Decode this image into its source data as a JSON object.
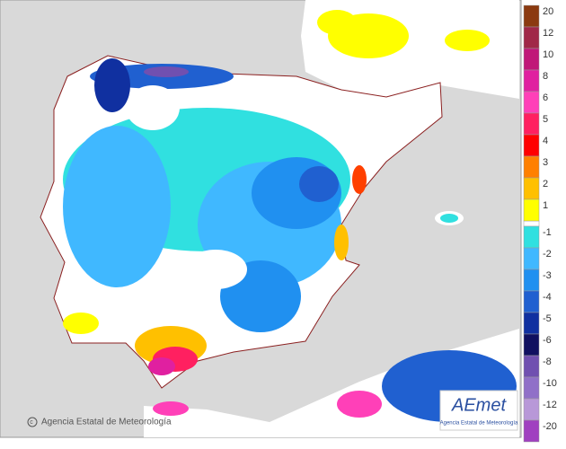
{
  "legend": [
    {
      "label": 20,
      "color": "#8b3a10"
    },
    {
      "label": 12,
      "color": "#a02848"
    },
    {
      "label": 10,
      "color": "#c01878"
    },
    {
      "label": 8,
      "color": "#e020a0"
    },
    {
      "label": 6,
      "color": "#ff40b8"
    },
    {
      "label": 5,
      "color": "#ff2060"
    },
    {
      "label": 4,
      "color": "#ff0000"
    },
    {
      "label": 3,
      "color": "#ff8000"
    },
    {
      "label": 2,
      "color": "#ffc000"
    },
    {
      "label": 1,
      "color": "#ffff00"
    },
    {
      "label": -1,
      "color": "#30e0e0"
    },
    {
      "label": -2,
      "color": "#40b8ff"
    },
    {
      "label": -3,
      "color": "#2090f0"
    },
    {
      "label": -4,
      "color": "#2060d0"
    },
    {
      "label": -5,
      "color": "#1030a0"
    },
    {
      "label": -6,
      "color": "#101060"
    },
    {
      "label": -8,
      "color": "#7050b0"
    },
    {
      "label": -10,
      "color": "#9070c8"
    },
    {
      "label": -12,
      "color": "#b898d8"
    },
    {
      "label": -20,
      "color": "#a040c0"
    }
  ],
  "credit": "Agencia Estatal de Meteorología",
  "logo": {
    "name": "AEmet",
    "subtitle": "Agencia Estatal de Meteorología"
  }
}
